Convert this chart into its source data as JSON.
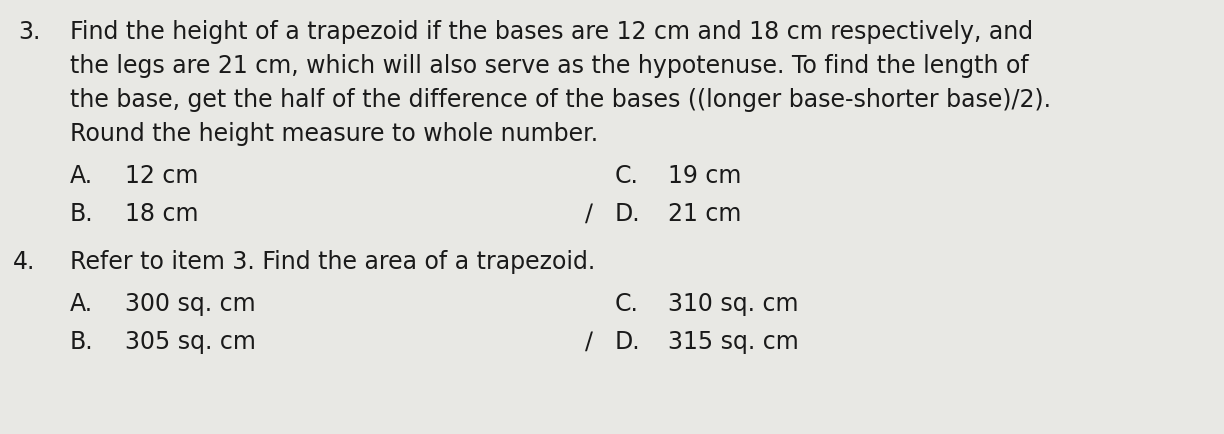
{
  "bg_color": "#e8e8e4",
  "text_color": "#1a1a1a",
  "q3_number": "3.",
  "q3_line1": "Find the height of a trapezoid if the bases are 12 cm and 18 cm respectively, and",
  "q3_line2": "the legs are 21 cm, which will also serve as the hypotenuse. To find the length of",
  "q3_line3": "the base, get the half of the difference of the bases ((longer base-shorter base)/2).",
  "q3_line4": "Round the height measure to whole number.",
  "q3_A_label": "A.",
  "q3_A_val": "12 cm",
  "q3_B_label": "B.",
  "q3_B_val": "18 cm",
  "q3_C_label": "C.",
  "q3_C_val": "19 cm",
  "q3_D_slash": "∕",
  "q3_D_label": "D.",
  "q3_D_val": "21 cm",
  "q4_number": "4.",
  "q4_line1": "Refer to item 3. Find the area of a trapezoid.",
  "q4_A_label": "A.",
  "q4_A_val": "300 sq. cm",
  "q4_B_label": "B.",
  "q4_B_val": "305 sq. cm",
  "q4_C_label": "C.",
  "q4_C_val": "310 sq. cm",
  "q4_D_slash": "∕",
  "q4_D_label": "D.",
  "q4_D_val": "315 sq. cm",
  "font_size_body": 17,
  "font_size_choices": 17
}
